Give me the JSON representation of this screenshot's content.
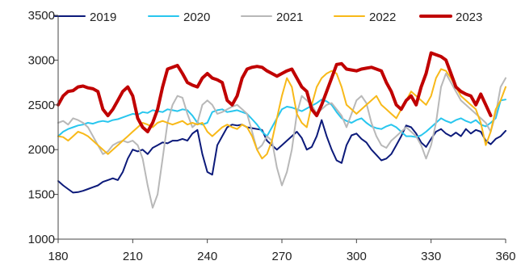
{
  "chart_data": {
    "type": "line",
    "title": "",
    "xlabel": "",
    "ylabel": "",
    "xlim": [
      180,
      360
    ],
    "ylim": [
      1000,
      3500
    ],
    "xticks": [
      180,
      210,
      240,
      270,
      300,
      330,
      360
    ],
    "yticks": [
      1000,
      1500,
      2000,
      2500,
      3000,
      3500
    ],
    "grid": false,
    "legend": "top",
    "series": [
      {
        "name": "2019",
        "color": "#0c1a7a",
        "width": 2,
        "x": [
          180,
          182,
          184,
          186,
          188,
          190,
          192,
          194,
          196,
          198,
          200,
          202,
          204,
          206,
          208,
          210,
          212,
          214,
          216,
          218,
          220,
          222,
          224,
          226,
          228,
          230,
          232,
          234,
          236,
          238,
          240,
          242,
          244,
          246,
          248,
          250,
          252,
          254,
          256,
          258,
          260,
          262,
          264,
          266,
          268,
          270,
          272,
          274,
          276,
          278,
          280,
          282,
          284,
          286,
          288,
          290,
          292,
          294,
          296,
          298,
          300,
          302,
          304,
          306,
          308,
          310,
          312,
          314,
          316,
          318,
          320,
          322,
          324,
          326,
          328,
          330,
          332,
          334,
          336,
          338,
          340,
          342,
          344,
          346,
          348,
          350,
          352,
          354,
          356,
          358,
          360
        ],
        "y": [
          1650,
          1600,
          1560,
          1520,
          1525,
          1540,
          1560,
          1580,
          1600,
          1640,
          1660,
          1680,
          1660,
          1750,
          1900,
          2000,
          1980,
          2000,
          1950,
          2020,
          2050,
          2080,
          2070,
          2100,
          2100,
          2120,
          2100,
          2180,
          2220,
          1950,
          1750,
          1720,
          2050,
          2150,
          2250,
          2280,
          2270,
          2280,
          2250,
          2240,
          2230,
          2220,
          2100,
          2050,
          2000,
          2050,
          2100,
          2150,
          2200,
          2130,
          2000,
          2030,
          2150,
          2330,
          2150,
          2000,
          1880,
          1850,
          2050,
          2160,
          2180,
          2120,
          2080,
          2000,
          1940,
          1880,
          1900,
          1950,
          2050,
          2150,
          2270,
          2250,
          2180,
          2080,
          2030,
          2120,
          2200,
          2230,
          2180,
          2150,
          2190,
          2150,
          2230,
          2180,
          2220,
          2200,
          2100,
          2060,
          2120,
          2150,
          2210
        ]
      },
      {
        "name": "2020",
        "color": "#28c6ee",
        "width": 2,
        "x": [
          180,
          182,
          184,
          186,
          188,
          190,
          192,
          194,
          196,
          198,
          200,
          202,
          204,
          206,
          208,
          210,
          212,
          214,
          216,
          218,
          220,
          222,
          224,
          226,
          228,
          230,
          232,
          234,
          236,
          238,
          240,
          242,
          244,
          246,
          248,
          250,
          252,
          254,
          256,
          258,
          260,
          262,
          264,
          266,
          268,
          270,
          272,
          274,
          276,
          278,
          280,
          282,
          284,
          286,
          288,
          290,
          292,
          294,
          296,
          298,
          300,
          302,
          304,
          306,
          308,
          310,
          312,
          314,
          316,
          318,
          320,
          322,
          324,
          326,
          328,
          330,
          332,
          334,
          336,
          338,
          340,
          342,
          344,
          346,
          348,
          350,
          352,
          354,
          356,
          358,
          360
        ],
        "y": [
          2150,
          2200,
          2230,
          2250,
          2270,
          2280,
          2300,
          2290,
          2310,
          2320,
          2310,
          2330,
          2340,
          2360,
          2380,
          2400,
          2390,
          2420,
          2410,
          2440,
          2430,
          2420,
          2450,
          2440,
          2430,
          2450,
          2440,
          2380,
          2300,
          2280,
          2300,
          2420,
          2440,
          2450,
          2420,
          2430,
          2440,
          2420,
          2400,
          2340,
          2280,
          2200,
          2150,
          2250,
          2350,
          2450,
          2480,
          2470,
          2450,
          2430,
          2460,
          2490,
          2520,
          2560,
          2540,
          2500,
          2420,
          2350,
          2320,
          2300,
          2330,
          2350,
          2300,
          2260,
          2240,
          2230,
          2260,
          2280,
          2250,
          2200,
          2150,
          2150,
          2140,
          2160,
          2200,
          2250,
          2300,
          2350,
          2320,
          2300,
          2330,
          2350,
          2320,
          2300,
          2330,
          2280,
          2260,
          2300,
          2350,
          2550,
          2560
        ]
      },
      {
        "name": "2021",
        "color": "#b8b8b8",
        "width": 2,
        "x": [
          180,
          182,
          184,
          186,
          188,
          190,
          192,
          194,
          196,
          198,
          200,
          202,
          204,
          206,
          208,
          210,
          212,
          214,
          216,
          218,
          220,
          222,
          224,
          226,
          228,
          230,
          232,
          234,
          236,
          238,
          240,
          242,
          244,
          246,
          248,
          250,
          252,
          254,
          256,
          258,
          260,
          262,
          264,
          266,
          268,
          270,
          272,
          274,
          276,
          278,
          280,
          282,
          284,
          286,
          288,
          290,
          292,
          294,
          296,
          298,
          300,
          302,
          304,
          306,
          308,
          310,
          312,
          314,
          316,
          318,
          320,
          322,
          324,
          326,
          328,
          330,
          332,
          334,
          336,
          338,
          340,
          342,
          344,
          346,
          348,
          350,
          352,
          354,
          356,
          358,
          360
        ],
        "y": [
          2300,
          2320,
          2280,
          2350,
          2330,
          2300,
          2250,
          2150,
          2050,
          1950,
          1980,
          2050,
          2080,
          2100,
          2080,
          2100,
          2050,
          1900,
          1600,
          1350,
          1500,
          1900,
          2300,
          2500,
          2600,
          2580,
          2400,
          2250,
          2300,
          2500,
          2550,
          2500,
          2400,
          2420,
          2450,
          2480,
          2500,
          2450,
          2400,
          2200,
          2000,
          2050,
          2150,
          2100,
          1800,
          1600,
          1750,
          2000,
          2400,
          2600,
          2550,
          2500,
          2400,
          2450,
          2500,
          2520,
          2450,
          2380,
          2250,
          2400,
          2550,
          2600,
          2520,
          2300,
          2150,
          2050,
          2020,
          2100,
          2150,
          2200,
          2250,
          2200,
          2150,
          2050,
          1900,
          2050,
          2300,
          2700,
          2850,
          2750,
          2650,
          2550,
          2500,
          2450,
          2400,
          2350,
          2300,
          2200,
          2400,
          2700,
          2800
        ]
      },
      {
        "name": "2022",
        "color": "#f8b919",
        "width": 2,
        "x": [
          180,
          182,
          184,
          186,
          188,
          190,
          192,
          194,
          196,
          198,
          200,
          202,
          204,
          206,
          208,
          210,
          212,
          214,
          216,
          218,
          220,
          222,
          224,
          226,
          228,
          230,
          232,
          234,
          236,
          238,
          240,
          242,
          244,
          246,
          248,
          250,
          252,
          254,
          256,
          258,
          260,
          262,
          264,
          266,
          268,
          270,
          272,
          274,
          276,
          278,
          280,
          282,
          284,
          286,
          288,
          290,
          292,
          294,
          296,
          298,
          300,
          302,
          304,
          306,
          308,
          310,
          312,
          314,
          316,
          318,
          320,
          322,
          324,
          326,
          328,
          330,
          332,
          334,
          336,
          338,
          340,
          342,
          344,
          346,
          348,
          350,
          352,
          354,
          356,
          358,
          360
        ],
        "y": [
          2150,
          2140,
          2100,
          2150,
          2200,
          2180,
          2150,
          2100,
          2050,
          2000,
          1950,
          2000,
          2050,
          2100,
          2150,
          2200,
          2250,
          2300,
          2280,
          2250,
          2300,
          2320,
          2300,
          2280,
          2300,
          2320,
          2280,
          2300,
          2280,
          2300,
          2200,
          2150,
          2200,
          2250,
          2280,
          2250,
          2230,
          2280,
          2250,
          2150,
          2000,
          1900,
          1950,
          2100,
          2350,
          2600,
          2800,
          2700,
          2400,
          2300,
          2250,
          2500,
          2700,
          2800,
          2850,
          2880,
          2850,
          2700,
          2500,
          2450,
          2400,
          2450,
          2500,
          2550,
          2600,
          2500,
          2450,
          2400,
          2350,
          2450,
          2550,
          2650,
          2600,
          2550,
          2500,
          2600,
          2800,
          2900,
          2880,
          2800,
          2700,
          2600,
          2550,
          2500,
          2450,
          2300,
          2050,
          2200,
          2450,
          2550,
          2700
        ]
      },
      {
        "name": "2023",
        "color": "#c00000",
        "width": 4,
        "x": [
          180,
          182,
          184,
          186,
          188,
          190,
          192,
          194,
          196,
          198,
          200,
          202,
          204,
          206,
          208,
          210,
          212,
          214,
          216,
          218,
          220,
          222,
          224,
          226,
          228,
          230,
          232,
          234,
          236,
          238,
          240,
          242,
          244,
          246,
          248,
          250,
          252,
          254,
          256,
          258,
          260,
          262,
          264,
          266,
          268,
          270,
          272,
          274,
          276,
          278,
          280,
          282,
          284,
          286,
          288,
          290,
          292,
          294,
          296,
          298,
          300,
          302,
          304,
          306,
          308,
          310,
          312,
          314,
          316,
          318,
          320,
          322,
          324,
          326,
          328,
          330,
          332,
          334,
          336,
          338,
          340,
          342,
          344,
          346,
          348,
          350,
          352,
          354
        ],
        "y": [
          2500,
          2600,
          2650,
          2660,
          2700,
          2710,
          2690,
          2680,
          2650,
          2450,
          2380,
          2450,
          2550,
          2650,
          2700,
          2600,
          2350,
          2250,
          2200,
          2300,
          2450,
          2700,
          2900,
          2920,
          2940,
          2850,
          2750,
          2720,
          2700,
          2800,
          2850,
          2800,
          2780,
          2750,
          2550,
          2500,
          2600,
          2800,
          2900,
          2920,
          2930,
          2920,
          2880,
          2850,
          2820,
          2850,
          2880,
          2900,
          2800,
          2700,
          2650,
          2450,
          2380,
          2500,
          2650,
          2800,
          2950,
          2960,
          2900,
          2890,
          2880,
          2900,
          2910,
          2920,
          2900,
          2880,
          2750,
          2650,
          2500,
          2450,
          2550,
          2600,
          2500,
          2700,
          2850,
          3080,
          3060,
          3040,
          3000,
          2850,
          2700,
          2650,
          2620,
          2600,
          2500,
          2620,
          2500,
          2380
        ]
      }
    ]
  }
}
